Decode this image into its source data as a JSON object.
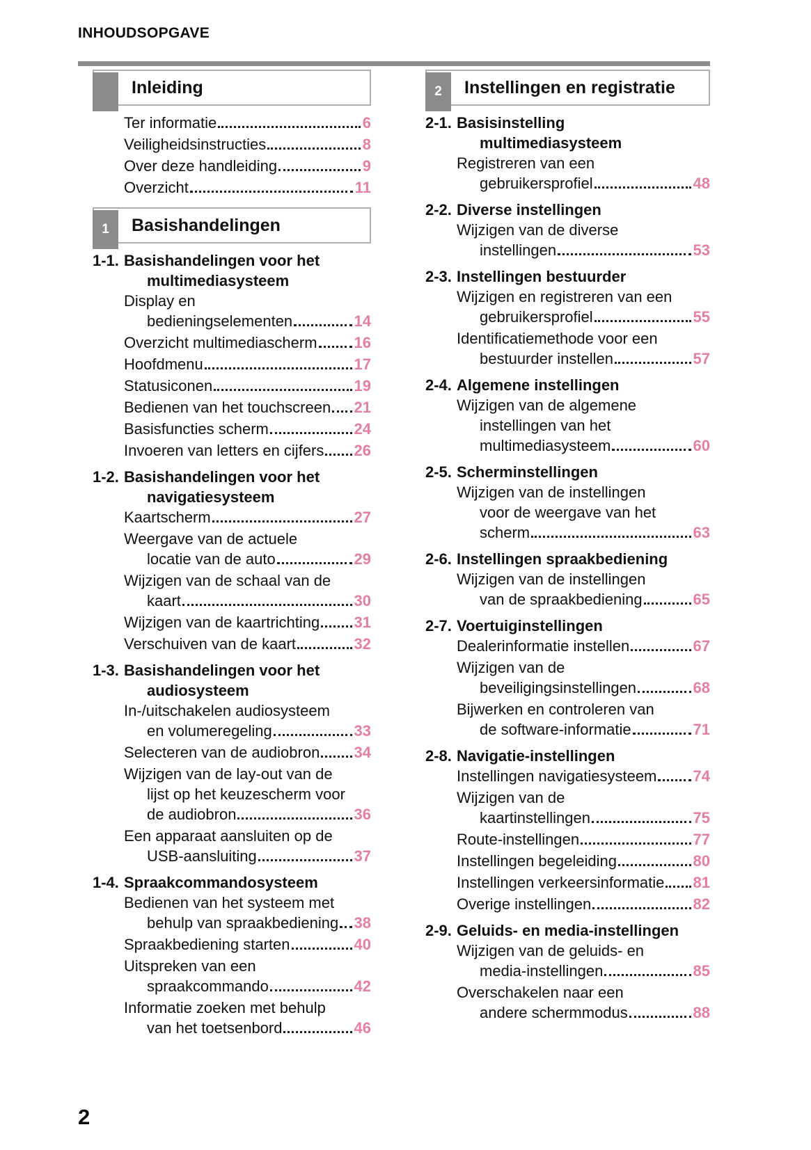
{
  "header": {
    "title": "INHOUDSOPGAVE"
  },
  "footer": {
    "page_number": "2"
  },
  "colors": {
    "accent_pink": "#e57e9f",
    "tab_gray": "#8b8b8b",
    "rule_gray": "#8d8d8d"
  },
  "columns": [
    {
      "items": [
        {
          "kind": "chapter",
          "num": "",
          "title": "Inleiding"
        },
        {
          "kind": "entry",
          "lines": [
            "Ter informatie"
          ],
          "page": "6"
        },
        {
          "kind": "entry",
          "lines": [
            "Veiligheidsinstructies"
          ],
          "page": "8"
        },
        {
          "kind": "entry",
          "lines": [
            "Over deze handleiding"
          ],
          "page": "9"
        },
        {
          "kind": "entry",
          "lines": [
            "Overzicht"
          ],
          "page": "11"
        },
        {
          "kind": "chapter",
          "num": "1",
          "title": "Basishandelingen"
        },
        {
          "kind": "section",
          "num": "1-1.",
          "lines": [
            "Basishandelingen voor het",
            "multimediasysteem"
          ]
        },
        {
          "kind": "entry",
          "lines": [
            "Display en",
            "bedieningselementen"
          ],
          "page": "14"
        },
        {
          "kind": "entry",
          "lines": [
            "Overzicht multimediascherm"
          ],
          "page": "16"
        },
        {
          "kind": "entry",
          "lines": [
            "Hoofdmenu"
          ],
          "page": "17"
        },
        {
          "kind": "entry",
          "lines": [
            "Statusiconen"
          ],
          "page": "19"
        },
        {
          "kind": "entry",
          "lines": [
            "Bedienen van het touchscreen"
          ],
          "page": "21"
        },
        {
          "kind": "entry",
          "lines": [
            "Basisfuncties scherm"
          ],
          "page": "24"
        },
        {
          "kind": "entry",
          "lines": [
            "Invoeren van letters en cijfers"
          ],
          "page": "26"
        },
        {
          "kind": "section",
          "num": "1-2.",
          "lines": [
            "Basishandelingen voor het",
            "navigatiesysteem"
          ]
        },
        {
          "kind": "entry",
          "lines": [
            "Kaartscherm"
          ],
          "page": "27"
        },
        {
          "kind": "entry",
          "lines": [
            "Weergave van de actuele",
            "locatie van de auto"
          ],
          "page": "29"
        },
        {
          "kind": "entry",
          "lines": [
            "Wijzigen van de schaal van de",
            "kaart"
          ],
          "page": "30"
        },
        {
          "kind": "entry",
          "lines": [
            "Wijzigen van de kaartrichting"
          ],
          "page": "31"
        },
        {
          "kind": "entry",
          "lines": [
            "Verschuiven van de kaart"
          ],
          "page": "32"
        },
        {
          "kind": "section",
          "num": "1-3.",
          "lines": [
            "Basishandelingen voor het",
            "audiosysteem"
          ]
        },
        {
          "kind": "entry",
          "lines": [
            "In-/uitschakelen audiosysteem",
            "en volumeregeling"
          ],
          "page": "33"
        },
        {
          "kind": "entry",
          "lines": [
            "Selecteren van de audiobron"
          ],
          "page": "34"
        },
        {
          "kind": "entry",
          "lines": [
            "Wijzigen van de lay-out van de",
            "lijst op het keuzescherm voor",
            "de audiobron"
          ],
          "page": "36"
        },
        {
          "kind": "entry",
          "lines": [
            "Een apparaat aansluiten op de",
            "USB-aansluiting"
          ],
          "page": "37"
        },
        {
          "kind": "section",
          "num": "1-4.",
          "lines": [
            "Spraakcommandosysteem"
          ]
        },
        {
          "kind": "entry",
          "lines": [
            "Bedienen van het systeem met",
            "behulp van spraakbediening"
          ],
          "page": "38"
        },
        {
          "kind": "entry",
          "lines": [
            "Spraakbediening starten"
          ],
          "page": "40"
        },
        {
          "kind": "entry",
          "lines": [
            "Uitspreken van een",
            "spraakcommando"
          ],
          "page": "42"
        },
        {
          "kind": "entry",
          "lines": [
            "Informatie zoeken met behulp",
            "van het toetsenbord"
          ],
          "page": "46"
        }
      ]
    },
    {
      "items": [
        {
          "kind": "chapter",
          "num": "2",
          "title": "Instellingen en registratie"
        },
        {
          "kind": "section",
          "num": "2-1.",
          "lines": [
            "Basisinstelling",
            "multimediasysteem"
          ]
        },
        {
          "kind": "entry",
          "lines": [
            "Registreren van een",
            "gebruikersprofiel"
          ],
          "page": "48"
        },
        {
          "kind": "section",
          "num": "2-2.",
          "lines": [
            "Diverse instellingen"
          ]
        },
        {
          "kind": "entry",
          "lines": [
            "Wijzigen van de diverse",
            "instellingen"
          ],
          "page": "53"
        },
        {
          "kind": "section",
          "num": "2-3.",
          "lines": [
            "Instellingen bestuurder"
          ]
        },
        {
          "kind": "entry",
          "lines": [
            "Wijzigen en registreren van een",
            "gebruikersprofiel"
          ],
          "page": "55"
        },
        {
          "kind": "entry",
          "lines": [
            "Identificatiemethode voor een",
            "bestuurder instellen"
          ],
          "page": "57"
        },
        {
          "kind": "section",
          "num": "2-4.",
          "lines": [
            "Algemene instellingen"
          ]
        },
        {
          "kind": "entry",
          "lines": [
            "Wijzigen van de algemene",
            "instellingen van het",
            "multimediasysteem"
          ],
          "page": "60"
        },
        {
          "kind": "section",
          "num": "2-5.",
          "lines": [
            "Scherminstellingen"
          ]
        },
        {
          "kind": "entry",
          "lines": [
            "Wijzigen van de instellingen",
            "voor de weergave van het",
            "scherm"
          ],
          "page": "63"
        },
        {
          "kind": "section",
          "num": "2-6.",
          "lines": [
            "Instellingen spraakbediening"
          ]
        },
        {
          "kind": "entry",
          "lines": [
            "Wijzigen van de instellingen",
            "van de spraakbediening"
          ],
          "page": "65"
        },
        {
          "kind": "section",
          "num": "2-7.",
          "lines": [
            "Voertuiginstellingen"
          ]
        },
        {
          "kind": "entry",
          "lines": [
            "Dealerinformatie instellen"
          ],
          "page": "67"
        },
        {
          "kind": "entry",
          "lines": [
            "Wijzigen van de",
            "beveiligingsinstellingen"
          ],
          "page": "68"
        },
        {
          "kind": "entry",
          "lines": [
            "Bijwerken en controleren van",
            "de software-informatie"
          ],
          "page": "71"
        },
        {
          "kind": "section",
          "num": "2-8.",
          "lines": [
            "Navigatie-instellingen"
          ]
        },
        {
          "kind": "entry",
          "lines": [
            "Instellingen navigatiesysteem"
          ],
          "page": "74"
        },
        {
          "kind": "entry",
          "lines": [
            "Wijzigen van de",
            "kaartinstellingen"
          ],
          "page": "75"
        },
        {
          "kind": "entry",
          "lines": [
            "Route-instellingen"
          ],
          "page": "77"
        },
        {
          "kind": "entry",
          "lines": [
            "Instellingen begeleiding"
          ],
          "page": "80"
        },
        {
          "kind": "entry",
          "lines": [
            "Instellingen verkeersinformatie"
          ],
          "page": "81"
        },
        {
          "kind": "entry",
          "lines": [
            "Overige instellingen"
          ],
          "page": "82"
        },
        {
          "kind": "section",
          "num": "2-9.",
          "lines": [
            "Geluids- en media-instellingen"
          ]
        },
        {
          "kind": "entry",
          "lines": [
            "Wijzigen van de geluids- en",
            "media-instellingen"
          ],
          "page": "85"
        },
        {
          "kind": "entry",
          "lines": [
            "Overschakelen naar een",
            "andere schermmodus"
          ],
          "page": "88"
        }
      ]
    }
  ]
}
